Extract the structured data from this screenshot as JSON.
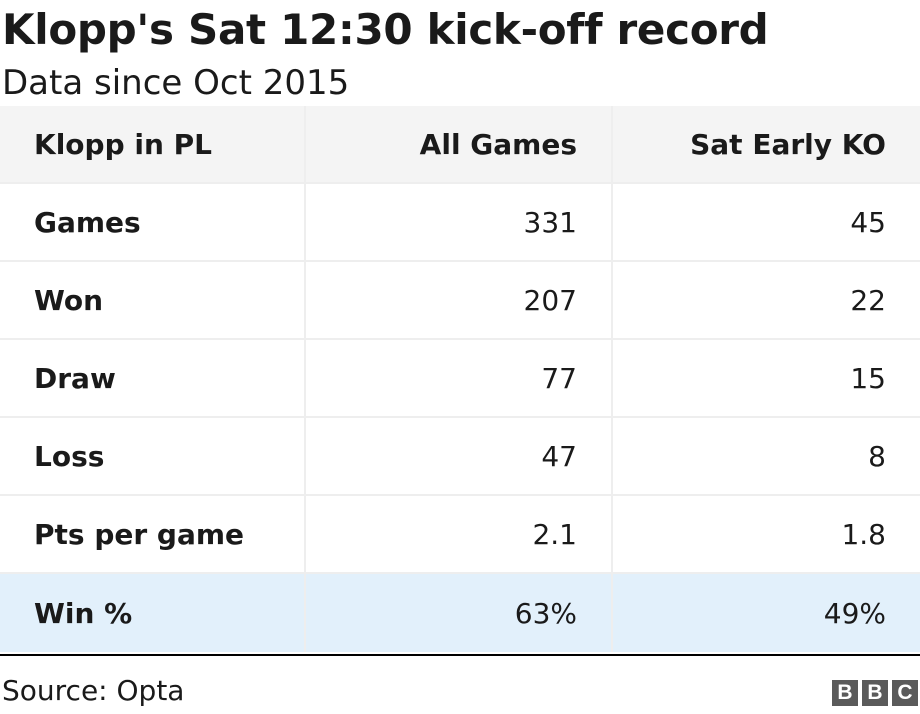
{
  "chart_data": {
    "type": "table",
    "title": "Klopp's Sat 12:30 kick-off record",
    "subtitle": "Data since Oct 2015",
    "columns": [
      "Klopp in PL",
      "All Games",
      "Sat Early KO"
    ],
    "rows": [
      [
        "Games",
        "331",
        "45"
      ],
      [
        "Won",
        "207",
        "22"
      ],
      [
        "Draw",
        "77",
        "15"
      ],
      [
        "Loss",
        "47",
        "8"
      ],
      [
        "Pts per game",
        "2.1",
        "1.8"
      ],
      [
        "Win %",
        "63%",
        "49%"
      ]
    ],
    "highlight_row": 5,
    "source": "Source: Opta"
  },
  "branding": {
    "logo_letters": [
      "B",
      "B",
      "C"
    ],
    "header_bg": "#f4f4f4",
    "highlight_bg": "#e2f0fb"
  }
}
